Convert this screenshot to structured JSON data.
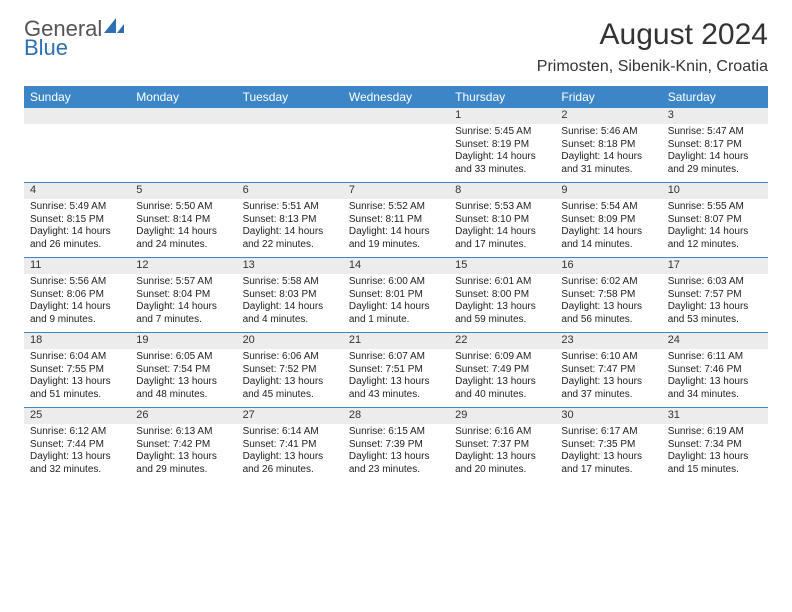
{
  "brand": {
    "part1": "General",
    "part2": "Blue"
  },
  "title": "August 2024",
  "location": "Primosten, Sibenik-Knin, Croatia",
  "colors": {
    "header_bg": "#3c86c8",
    "header_text": "#ffffff",
    "daynum_bg": "#ececec",
    "rule": "#3c86c8",
    "text": "#222222",
    "brand_gray": "#555555",
    "brand_blue": "#2f6fb0",
    "page_bg": "#ffffff"
  },
  "typography": {
    "title_fontsize": 30,
    "location_fontsize": 16,
    "weekday_fontsize": 12,
    "daynum_fontsize": 11,
    "detail_fontsize": 10,
    "font_family": "Arial"
  },
  "layout": {
    "columns": 7,
    "rows": 5,
    "first_weekday": "Sunday"
  },
  "weekdays": [
    "Sunday",
    "Monday",
    "Tuesday",
    "Wednesday",
    "Thursday",
    "Friday",
    "Saturday"
  ],
  "weeks": [
    [
      null,
      null,
      null,
      null,
      {
        "n": "1",
        "sunrise": "5:45 AM",
        "sunset": "8:19 PM",
        "dl1": "Daylight: 14 hours",
        "dl2": "and 33 minutes."
      },
      {
        "n": "2",
        "sunrise": "5:46 AM",
        "sunset": "8:18 PM",
        "dl1": "Daylight: 14 hours",
        "dl2": "and 31 minutes."
      },
      {
        "n": "3",
        "sunrise": "5:47 AM",
        "sunset": "8:17 PM",
        "dl1": "Daylight: 14 hours",
        "dl2": "and 29 minutes."
      }
    ],
    [
      {
        "n": "4",
        "sunrise": "5:49 AM",
        "sunset": "8:15 PM",
        "dl1": "Daylight: 14 hours",
        "dl2": "and 26 minutes."
      },
      {
        "n": "5",
        "sunrise": "5:50 AM",
        "sunset": "8:14 PM",
        "dl1": "Daylight: 14 hours",
        "dl2": "and 24 minutes."
      },
      {
        "n": "6",
        "sunrise": "5:51 AM",
        "sunset": "8:13 PM",
        "dl1": "Daylight: 14 hours",
        "dl2": "and 22 minutes."
      },
      {
        "n": "7",
        "sunrise": "5:52 AM",
        "sunset": "8:11 PM",
        "dl1": "Daylight: 14 hours",
        "dl2": "and 19 minutes."
      },
      {
        "n": "8",
        "sunrise": "5:53 AM",
        "sunset": "8:10 PM",
        "dl1": "Daylight: 14 hours",
        "dl2": "and 17 minutes."
      },
      {
        "n": "9",
        "sunrise": "5:54 AM",
        "sunset": "8:09 PM",
        "dl1": "Daylight: 14 hours",
        "dl2": "and 14 minutes."
      },
      {
        "n": "10",
        "sunrise": "5:55 AM",
        "sunset": "8:07 PM",
        "dl1": "Daylight: 14 hours",
        "dl2": "and 12 minutes."
      }
    ],
    [
      {
        "n": "11",
        "sunrise": "5:56 AM",
        "sunset": "8:06 PM",
        "dl1": "Daylight: 14 hours",
        "dl2": "and 9 minutes."
      },
      {
        "n": "12",
        "sunrise": "5:57 AM",
        "sunset": "8:04 PM",
        "dl1": "Daylight: 14 hours",
        "dl2": "and 7 minutes."
      },
      {
        "n": "13",
        "sunrise": "5:58 AM",
        "sunset": "8:03 PM",
        "dl1": "Daylight: 14 hours",
        "dl2": "and 4 minutes."
      },
      {
        "n": "14",
        "sunrise": "6:00 AM",
        "sunset": "8:01 PM",
        "dl1": "Daylight: 14 hours",
        "dl2": "and 1 minute."
      },
      {
        "n": "15",
        "sunrise": "6:01 AM",
        "sunset": "8:00 PM",
        "dl1": "Daylight: 13 hours",
        "dl2": "and 59 minutes."
      },
      {
        "n": "16",
        "sunrise": "6:02 AM",
        "sunset": "7:58 PM",
        "dl1": "Daylight: 13 hours",
        "dl2": "and 56 minutes."
      },
      {
        "n": "17",
        "sunrise": "6:03 AM",
        "sunset": "7:57 PM",
        "dl1": "Daylight: 13 hours",
        "dl2": "and 53 minutes."
      }
    ],
    [
      {
        "n": "18",
        "sunrise": "6:04 AM",
        "sunset": "7:55 PM",
        "dl1": "Daylight: 13 hours",
        "dl2": "and 51 minutes."
      },
      {
        "n": "19",
        "sunrise": "6:05 AM",
        "sunset": "7:54 PM",
        "dl1": "Daylight: 13 hours",
        "dl2": "and 48 minutes."
      },
      {
        "n": "20",
        "sunrise": "6:06 AM",
        "sunset": "7:52 PM",
        "dl1": "Daylight: 13 hours",
        "dl2": "and 45 minutes."
      },
      {
        "n": "21",
        "sunrise": "6:07 AM",
        "sunset": "7:51 PM",
        "dl1": "Daylight: 13 hours",
        "dl2": "and 43 minutes."
      },
      {
        "n": "22",
        "sunrise": "6:09 AM",
        "sunset": "7:49 PM",
        "dl1": "Daylight: 13 hours",
        "dl2": "and 40 minutes."
      },
      {
        "n": "23",
        "sunrise": "6:10 AM",
        "sunset": "7:47 PM",
        "dl1": "Daylight: 13 hours",
        "dl2": "and 37 minutes."
      },
      {
        "n": "24",
        "sunrise": "6:11 AM",
        "sunset": "7:46 PM",
        "dl1": "Daylight: 13 hours",
        "dl2": "and 34 minutes."
      }
    ],
    [
      {
        "n": "25",
        "sunrise": "6:12 AM",
        "sunset": "7:44 PM",
        "dl1": "Daylight: 13 hours",
        "dl2": "and 32 minutes."
      },
      {
        "n": "26",
        "sunrise": "6:13 AM",
        "sunset": "7:42 PM",
        "dl1": "Daylight: 13 hours",
        "dl2": "and 29 minutes."
      },
      {
        "n": "27",
        "sunrise": "6:14 AM",
        "sunset": "7:41 PM",
        "dl1": "Daylight: 13 hours",
        "dl2": "and 26 minutes."
      },
      {
        "n": "28",
        "sunrise": "6:15 AM",
        "sunset": "7:39 PM",
        "dl1": "Daylight: 13 hours",
        "dl2": "and 23 minutes."
      },
      {
        "n": "29",
        "sunrise": "6:16 AM",
        "sunset": "7:37 PM",
        "dl1": "Daylight: 13 hours",
        "dl2": "and 20 minutes."
      },
      {
        "n": "30",
        "sunrise": "6:17 AM",
        "sunset": "7:35 PM",
        "dl1": "Daylight: 13 hours",
        "dl2": "and 17 minutes."
      },
      {
        "n": "31",
        "sunrise": "6:19 AM",
        "sunset": "7:34 PM",
        "dl1": "Daylight: 13 hours",
        "dl2": "and 15 minutes."
      }
    ]
  ],
  "labels": {
    "sunrise_prefix": "Sunrise: ",
    "sunset_prefix": "Sunset: "
  }
}
